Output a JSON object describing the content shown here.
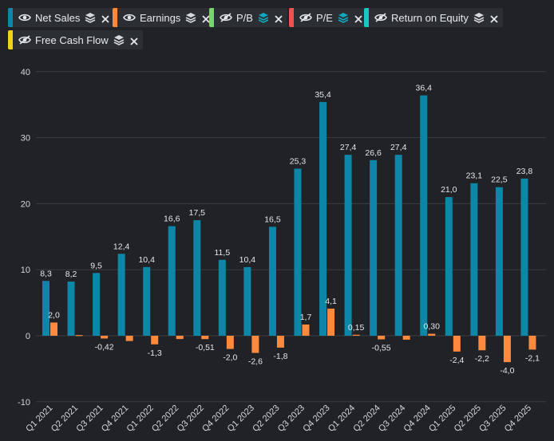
{
  "legend": [
    {
      "label": "Net Sales",
      "color": "#0e86a8",
      "visible": true,
      "eye_icon": "eye-icon",
      "stack_color": "#d6d8dc"
    },
    {
      "label": "Earnings",
      "color": "#ff8a3d",
      "visible": true,
      "eye_icon": "eye-icon",
      "stack_color": "#d6d8dc"
    },
    {
      "label": "P/B",
      "color": "#79d46a",
      "visible": false,
      "eye_icon": "eye-off-icon",
      "stack_color": "#10a7bf"
    },
    {
      "label": "P/E",
      "color": "#f0524e",
      "visible": false,
      "eye_icon": "eye-off-icon",
      "stack_color": "#10a7bf"
    },
    {
      "label": "Return on Equity",
      "color": "#17c8c0",
      "visible": false,
      "eye_icon": "eye-off-icon",
      "stack_color": "#d6d8dc"
    },
    {
      "label": "Free Cash Flow",
      "color": "#f3d21b",
      "visible": false,
      "eye_icon": "eye-off-icon",
      "stack_color": "#d6d8dc"
    }
  ],
  "chart_data": {
    "type": "bar",
    "categories": [
      "Q1 2021",
      "Q2 2021",
      "Q3 2021",
      "Q4 2021",
      "Q1 2022",
      "Q2 2022",
      "Q3 2022",
      "Q4 2022",
      "Q1 2023",
      "Q2 2023",
      "Q3 2023",
      "Q4 2023",
      "Q1 2024",
      "Q2 2024",
      "Q3 2024",
      "Q4 2024",
      "Q1 2025",
      "Q2 2025",
      "Q3 2025",
      "Q4 2025"
    ],
    "series": [
      {
        "name": "Net Sales",
        "color": "#0e86a8",
        "values": [
          8.3,
          8.2,
          9.5,
          12.4,
          10.4,
          16.6,
          17.5,
          11.5,
          10.4,
          16.5,
          25.3,
          35.4,
          27.4,
          26.6,
          27.4,
          36.4,
          21.0,
          23.1,
          22.5,
          23.8
        ],
        "labels": [
          "8,3",
          "8,2",
          "9,5",
          "12,4",
          "10,4",
          "16,6",
          "17,5",
          "11,5",
          "10,4",
          "16,5",
          "25,3",
          "35,4",
          "27,4",
          "26,6",
          "27,4",
          "36,4",
          "21,0",
          "23,1",
          "22,5",
          "23,8"
        ]
      },
      {
        "name": "Earnings",
        "color": "#ff8a3d",
        "values": [
          2.0,
          0.1,
          -0.42,
          -0.8,
          -1.3,
          -0.5,
          -0.51,
          -2.0,
          -2.6,
          -1.8,
          1.7,
          4.1,
          0.15,
          -0.55,
          -0.6,
          0.3,
          -2.4,
          -2.2,
          -4.0,
          -2.1
        ],
        "labels": [
          "2,0",
          "",
          "-0,42",
          "",
          "-1,3",
          "",
          "-0,51",
          "-2,0",
          "-2,6",
          "-1,8",
          "1,7",
          "4,1",
          "0,15",
          "-0,55",
          "",
          "0,30",
          "-2,4",
          "-2,2",
          "-4,0",
          "-2,1"
        ]
      }
    ],
    "yticks": [
      "-10",
      "0",
      "10",
      "20",
      "30",
      "40"
    ],
    "ylim": [
      -10,
      40
    ],
    "grid": true,
    "xlabel": "",
    "ylabel": "",
    "title": ""
  }
}
